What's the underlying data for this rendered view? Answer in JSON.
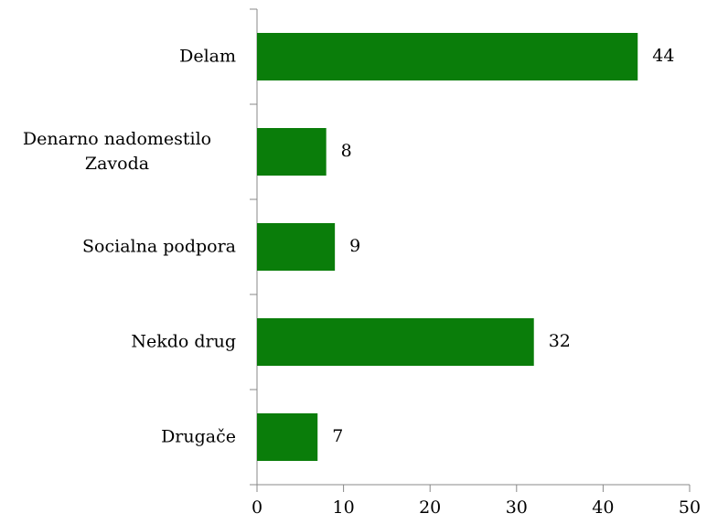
{
  "chart_data": {
    "type": "bar",
    "orientation": "horizontal",
    "categories": [
      "Delam",
      "Denarno nadomestilo Zavoda",
      "Socialna podpora",
      "Nekdo drug",
      "Drugače"
    ],
    "values": [
      44,
      8,
      9,
      32,
      7
    ],
    "color": "#0a7d0a",
    "xlim": [
      0,
      50
    ],
    "xticks": [
      0,
      10,
      20,
      30,
      40,
      50
    ],
    "grid": false
  }
}
